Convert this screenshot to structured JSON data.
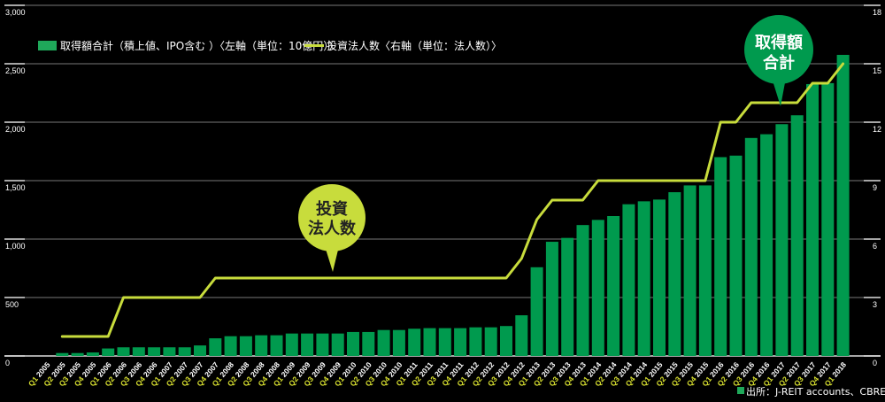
{
  "chart_data": {
    "type": "bar+line",
    "categories": [
      "Q1 2005",
      "Q2 2005",
      "Q3 2005",
      "Q4 2005",
      "Q1 2006",
      "Q2 2006",
      "Q3 2006",
      "Q4 2006",
      "Q1 2007",
      "Q2 2007",
      "Q3 2007",
      "Q4 2007",
      "Q1 2008",
      "Q2 2008",
      "Q3 2008",
      "Q4 2008",
      "Q1 2009",
      "Q2 2009",
      "Q3 2009",
      "Q4 2009",
      "Q1 2010",
      "Q2 2010",
      "Q3 2010",
      "Q4 2010",
      "Q1 2011",
      "Q2 2011",
      "Q3 2011",
      "Q4 2011",
      "Q1 2012",
      "Q2 2012",
      "Q3 2012",
      "Q4 2012",
      "Q1 2013",
      "Q2 2013",
      "Q3 2013",
      "Q4 2013",
      "Q1 2014",
      "Q2 2014",
      "Q3 2014",
      "Q4 2014",
      "Q1 2015",
      "Q2 2015",
      "Q3 2015",
      "Q4 2015",
      "Q1 2016",
      "Q2 2016",
      "Q3 2016",
      "Q4 2016",
      "Q1 2017",
      "Q2 2017",
      "Q3 2017",
      "Q4 2017",
      "Q1 2018"
    ],
    "series": [
      {
        "name": "取得額合計（積上値、IPO含む ）〈左軸（単位：10億円）〉",
        "type": "bar",
        "axis": "left",
        "color": "#009a4e",
        "values": [
          0,
          25,
          25,
          30,
          64,
          74,
          74,
          74,
          74,
          74,
          90,
          151,
          169,
          169,
          177,
          177,
          192,
          192,
          192,
          192,
          205,
          205,
          222,
          222,
          233,
          238,
          238,
          238,
          245,
          245,
          256,
          348,
          759,
          977,
          1010,
          1120,
          1164,
          1197,
          1298,
          1323,
          1338,
          1401,
          1459,
          1459,
          1701,
          1714,
          1865,
          1897,
          1983,
          2059,
          2326,
          2334,
          2576
        ]
      },
      {
        "name": "投資法人数〈右軸（単位：法人数）〉",
        "type": "line",
        "axis": "right",
        "color": "#c8dc3c",
        "values": [
          null,
          1,
          1,
          1,
          1,
          3,
          3,
          3,
          3,
          3,
          3,
          4,
          4,
          4,
          4,
          4,
          4,
          4,
          4,
          4,
          4,
          4,
          4,
          4,
          4,
          4,
          4,
          4,
          4,
          4,
          4,
          5,
          7,
          8,
          8,
          8,
          9,
          9,
          9,
          9,
          9,
          9,
          9,
          9,
          12,
          12,
          13,
          13,
          13,
          13,
          14,
          14,
          15
        ]
      }
    ],
    "y_left": {
      "range": [
        0,
        3000
      ],
      "ticks": [
        "0",
        "500",
        "1,000",
        "1,500",
        "2,000",
        "2,500",
        "3,000"
      ]
    },
    "y_right": {
      "range": [
        0,
        18
      ],
      "ticks": [
        "0",
        "3",
        "6",
        "9",
        "12",
        "15",
        "18"
      ]
    },
    "grid": true,
    "legend_position": "top-left",
    "annotations": [
      {
        "text_lines": [
          "投資",
          "法人数"
        ],
        "color": "#c8dc3c",
        "points_to": "Q4 2009"
      },
      {
        "text_lines": [
          "取得額",
          "合計"
        ],
        "color": "#009a4e",
        "points_to": "Q1 2017"
      }
    ],
    "source": "出所：J-REIT accounts、CBRE"
  }
}
